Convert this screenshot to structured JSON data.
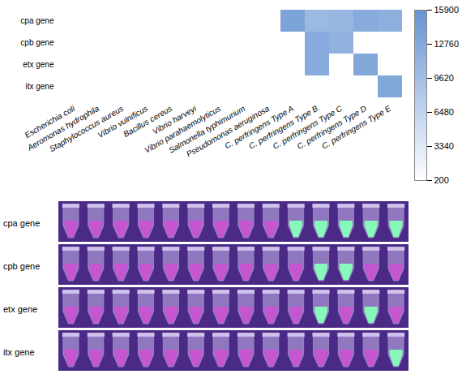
{
  "chart_data": {
    "type": "heatmap",
    "x_categories": [
      "Escherichia coli",
      "Aeromonas hydrophila",
      "Staphylococcus aureus",
      "Vibrio vulnificus",
      "Bacillus cereus",
      "Vibrio harveyi",
      "Vibrio parahaemolyticus",
      "Salmonella typhimurium",
      "Pseudomonas aeruginosa",
      "C. perfringens Type A",
      "C. perfringens Type B",
      "C. perfringens Type C",
      "C. perfringens Type D",
      "C. perfringens Type E"
    ],
    "y_categories": [
      "cpa gene",
      "cpb gene",
      "etx gene",
      "itx gene"
    ],
    "values": [
      [
        200,
        200,
        200,
        200,
        200,
        200,
        200,
        200,
        200,
        13500,
        10500,
        11000,
        12500,
        12000
      ],
      [
        200,
        200,
        200,
        200,
        200,
        200,
        200,
        200,
        200,
        200,
        12500,
        11500,
        200,
        200
      ],
      [
        200,
        200,
        200,
        200,
        200,
        200,
        200,
        200,
        200,
        200,
        12500,
        200,
        13000,
        200
      ],
      [
        200,
        200,
        200,
        200,
        200,
        200,
        200,
        200,
        200,
        200,
        200,
        200,
        200,
        13000
      ]
    ],
    "colorbar": {
      "range": [
        200,
        15900
      ],
      "ticks": [
        200,
        3340,
        6480,
        9620,
        12760,
        15900
      ],
      "colors": [
        "#ffffff",
        "#6694d2"
      ]
    }
  },
  "tube_panel": {
    "rows": [
      {
        "label": "cpa gene",
        "positive": [
          false,
          false,
          false,
          false,
          false,
          false,
          false,
          false,
          false,
          true,
          true,
          true,
          true,
          true
        ]
      },
      {
        "label": "cpb gene",
        "positive": [
          false,
          false,
          false,
          false,
          false,
          false,
          false,
          false,
          false,
          false,
          true,
          true,
          false,
          false
        ]
      },
      {
        "label": "etx gene",
        "positive": [
          false,
          false,
          false,
          false,
          false,
          false,
          false,
          false,
          false,
          false,
          true,
          false,
          true,
          false
        ]
      },
      {
        "label": "itx gene",
        "positive": [
          false,
          false,
          false,
          false,
          false,
          false,
          false,
          false,
          false,
          false,
          false,
          false,
          false,
          true
        ]
      }
    ]
  }
}
